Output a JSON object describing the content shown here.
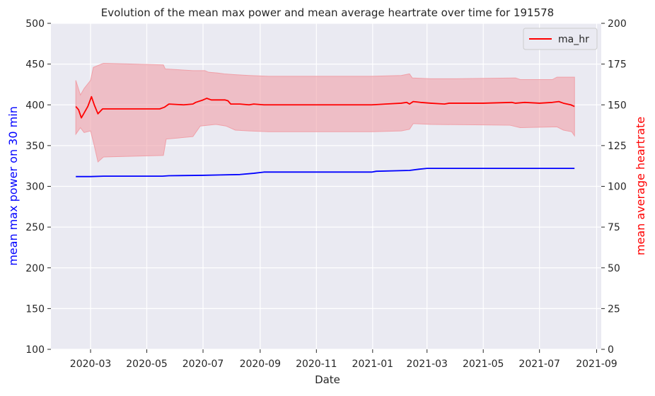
{
  "chart_data": {
    "type": "line",
    "title": "Evolution of the mean max power and mean average heartrate over time for 191578",
    "xlabel": "Date",
    "ylabel_left": "mean max power on 30 min",
    "ylabel_right": "mean average heartrate",
    "ylim_left": [
      100,
      500
    ],
    "ylim_right": [
      0,
      200
    ],
    "xlim": [
      "2020-01-18",
      "2021-09-06"
    ],
    "x_ticks": [
      "2020-03",
      "2020-05",
      "2020-07",
      "2020-09",
      "2020-11",
      "2021-01",
      "2021-03",
      "2021-05",
      "2021-07",
      "2021-09"
    ],
    "y_ticks_left": [
      100,
      150,
      200,
      250,
      300,
      350,
      400,
      450,
      500
    ],
    "y_ticks_right": [
      0,
      25,
      50,
      75,
      100,
      125,
      150,
      175,
      200
    ],
    "grid": true,
    "legend_position": "upper-right",
    "colors": {
      "background": "#eaeaf2",
      "grid": "#ffffff",
      "power_line": "#0000ff",
      "hr_line": "#ff0000",
      "hr_band": "#f0a0a8",
      "left_label": "#0000ff",
      "right_label": "#ff0000",
      "text": "#262626"
    },
    "series": [
      {
        "axis": "left",
        "color": "#0000ff",
        "points": [
          [
            "2020-02-14",
            312
          ],
          [
            "2020-03-01",
            312
          ],
          [
            "2020-03-15",
            312.5
          ],
          [
            "2020-04-15",
            312.5
          ],
          [
            "2020-05-18",
            312.5
          ],
          [
            "2020-05-25",
            313
          ],
          [
            "2020-06-30",
            313.5
          ],
          [
            "2020-07-20",
            314
          ],
          [
            "2020-08-10",
            314.5
          ],
          [
            "2020-08-25",
            316
          ],
          [
            "2020-09-05",
            317.5
          ],
          [
            "2020-10-15",
            317.5
          ],
          [
            "2020-12-31",
            317.5
          ],
          [
            "2021-01-05",
            318.5
          ],
          [
            "2021-02-10",
            319.5
          ],
          [
            "2021-02-20",
            321
          ],
          [
            "2021-03-01",
            322
          ],
          [
            "2021-05-15",
            322
          ],
          [
            "2021-07-15",
            322
          ],
          [
            "2021-08-08",
            322
          ]
        ]
      },
      {
        "name": "ma_hr",
        "axis": "right",
        "color": "#ff0000",
        "points": [
          [
            "2020-02-14",
            149
          ],
          [
            "2020-02-17",
            147
          ],
          [
            "2020-02-20",
            142
          ],
          [
            "2020-02-23",
            145
          ],
          [
            "2020-02-27",
            149
          ],
          [
            "2020-03-02",
            155
          ],
          [
            "2020-03-05",
            150
          ],
          [
            "2020-03-09",
            144.5
          ],
          [
            "2020-03-14",
            147.5
          ],
          [
            "2020-04-01",
            147.5
          ],
          [
            "2020-05-01",
            147.5
          ],
          [
            "2020-05-15",
            147.5
          ],
          [
            "2020-05-20",
            148.5
          ],
          [
            "2020-05-25",
            150.5
          ],
          [
            "2020-06-10",
            150
          ],
          [
            "2020-06-20",
            150.5
          ],
          [
            "2020-06-23",
            151.5
          ],
          [
            "2020-07-01",
            153
          ],
          [
            "2020-07-05",
            154
          ],
          [
            "2020-07-10",
            153
          ],
          [
            "2020-07-25",
            153
          ],
          [
            "2020-07-28",
            152.5
          ],
          [
            "2020-07-31",
            150.5
          ],
          [
            "2020-08-10",
            150.5
          ],
          [
            "2020-08-20",
            150
          ],
          [
            "2020-08-25",
            150.5
          ],
          [
            "2020-09-05",
            150
          ],
          [
            "2020-10-15",
            150
          ],
          [
            "2020-12-31",
            150
          ],
          [
            "2021-01-15",
            150.5
          ],
          [
            "2021-02-01",
            151
          ],
          [
            "2021-02-07",
            151.5
          ],
          [
            "2021-02-10",
            150.5
          ],
          [
            "2021-02-14",
            152
          ],
          [
            "2021-02-22",
            151.5
          ],
          [
            "2021-03-05",
            151
          ],
          [
            "2021-03-20",
            150.5
          ],
          [
            "2021-03-25",
            151
          ],
          [
            "2021-05-01",
            151
          ],
          [
            "2021-06-01",
            151.5
          ],
          [
            "2021-06-05",
            151
          ],
          [
            "2021-06-15",
            151.5
          ],
          [
            "2021-07-01",
            151
          ],
          [
            "2021-07-15",
            151.5
          ],
          [
            "2021-07-22",
            152
          ],
          [
            "2021-07-27",
            151
          ],
          [
            "2021-08-04",
            150
          ],
          [
            "2021-08-08",
            149
          ]
        ]
      },
      {
        "axis": "right",
        "color": "#f0a0a8",
        "band": true,
        "upper": [
          [
            "2020-02-14",
            165
          ],
          [
            "2020-02-19",
            156
          ],
          [
            "2020-02-23",
            160
          ],
          [
            "2020-03-01",
            165
          ],
          [
            "2020-03-04",
            173
          ],
          [
            "2020-03-15",
            175.5
          ],
          [
            "2020-05-19",
            174.5
          ],
          [
            "2020-05-21",
            172
          ],
          [
            "2020-06-20",
            171
          ],
          [
            "2020-07-03",
            171
          ],
          [
            "2020-07-07",
            170
          ],
          [
            "2020-07-17",
            169.5
          ],
          [
            "2020-07-24",
            169
          ],
          [
            "2020-08-05",
            168.5
          ],
          [
            "2020-08-20",
            168
          ],
          [
            "2020-09-10",
            167.5
          ],
          [
            "2020-12-31",
            167.5
          ],
          [
            "2021-02-01",
            168
          ],
          [
            "2021-02-10",
            169
          ],
          [
            "2021-02-13",
            166.5
          ],
          [
            "2021-03-05",
            166
          ],
          [
            "2021-04-01",
            166
          ],
          [
            "2021-06-05",
            166.5
          ],
          [
            "2021-06-10",
            165.5
          ],
          [
            "2021-07-15",
            165.5
          ],
          [
            "2021-07-20",
            167
          ],
          [
            "2021-08-08",
            167
          ]
        ],
        "lower": [
          [
            "2020-02-14",
            132
          ],
          [
            "2020-02-19",
            136
          ],
          [
            "2020-02-23",
            133
          ],
          [
            "2020-03-01",
            134
          ],
          [
            "2020-03-05",
            125
          ],
          [
            "2020-03-09",
            115
          ],
          [
            "2020-03-15",
            118
          ],
          [
            "2020-05-19",
            119
          ],
          [
            "2020-05-22",
            129
          ],
          [
            "2020-06-20",
            130.5
          ],
          [
            "2020-06-28",
            137
          ],
          [
            "2020-07-15",
            138
          ],
          [
            "2020-07-26",
            137
          ],
          [
            "2020-08-05",
            134.5
          ],
          [
            "2020-08-20",
            134
          ],
          [
            "2020-09-10",
            133.5
          ],
          [
            "2020-12-31",
            133.5
          ],
          [
            "2021-02-01",
            134
          ],
          [
            "2021-02-10",
            135
          ],
          [
            "2021-02-14",
            138.5
          ],
          [
            "2021-03-05",
            138
          ],
          [
            "2021-05-30",
            137.5
          ],
          [
            "2021-06-10",
            136
          ],
          [
            "2021-07-20",
            136.5
          ],
          [
            "2021-07-27",
            134.5
          ],
          [
            "2021-08-05",
            133.5
          ],
          [
            "2021-08-08",
            131
          ]
        ]
      }
    ]
  }
}
